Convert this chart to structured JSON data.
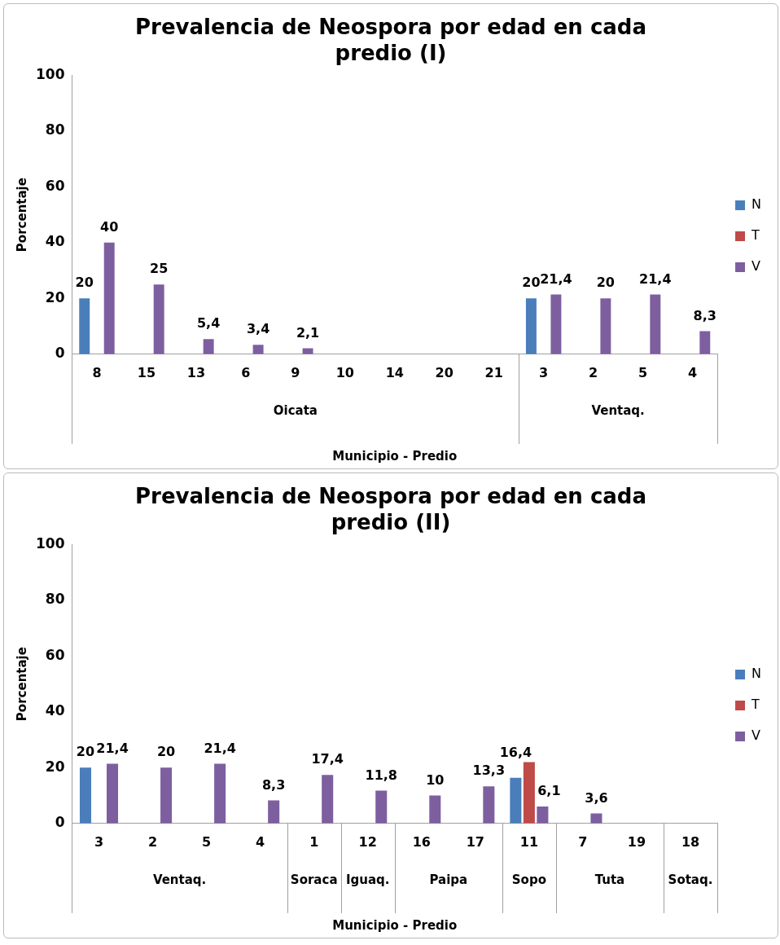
{
  "chart_data": [
    {
      "type": "bar",
      "title": "Prevalencia de Neospora por edad en cada predio (I)",
      "xlabel": "Municipio - Predio",
      "ylabel": "Porcentaje",
      "categories": [
        "8",
        "15",
        "13",
        "6",
        "9",
        "10",
        "14",
        "20",
        "21",
        "3",
        "2",
        "5",
        "4"
      ],
      "series": [
        {
          "name": "N",
          "color": "#4a7ebb",
          "values": [
            20,
            null,
            null,
            null,
            null,
            null,
            null,
            null,
            null,
            20,
            null,
            null,
            null
          ],
          "value_labels": [
            "20",
            null,
            null,
            null,
            null,
            null,
            null,
            null,
            null,
            "20",
            null,
            null,
            null
          ]
        },
        {
          "name": "T",
          "color": "#be4b48",
          "values": [
            null,
            null,
            null,
            null,
            null,
            null,
            null,
            null,
            null,
            null,
            null,
            null,
            null
          ]
        },
        {
          "name": "V",
          "color": "#7d5fa0",
          "values": [
            40,
            25,
            5.4,
            3.4,
            2.1,
            null,
            null,
            null,
            null,
            21.4,
            20,
            21.4,
            8.3
          ],
          "value_labels": [
            "40",
            "25",
            "5,4",
            "3,4",
            "2,1",
            null,
            null,
            null,
            null,
            "21,4",
            "20",
            "21,4",
            "8,3"
          ]
        }
      ],
      "ylim": [
        0,
        100
      ],
      "yticks": [
        0,
        20,
        40,
        60,
        80,
        100
      ],
      "grid": false,
      "legend": "right",
      "annotations": [
        "Oicata",
        "Ventaq."
      ]
    },
    {
      "type": "bar",
      "title": "Prevalencia de Neospora por edad en cada predio (II)",
      "xlabel": "Municipio - Predio",
      "ylabel": "Porcentaje",
      "categories": [
        "3",
        "2",
        "5",
        "4",
        "1",
        "12",
        "16",
        "17",
        "11",
        "7",
        "19",
        "18"
      ],
      "series": [
        {
          "name": "N",
          "color": "#4a7ebb",
          "values": [
            20,
            null,
            null,
            null,
            null,
            null,
            null,
            null,
            16.4,
            null,
            null,
            null
          ],
          "value_labels": [
            "20",
            null,
            null,
            null,
            null,
            null,
            null,
            null,
            "16,4",
            null,
            null,
            null
          ]
        },
        {
          "name": "T",
          "color": "#be4b48",
          "values": [
            null,
            null,
            null,
            null,
            null,
            null,
            null,
            null,
            22,
            null,
            null,
            null
          ]
        },
        {
          "name": "V",
          "color": "#7d5fa0",
          "values": [
            21.4,
            20,
            21.4,
            8.3,
            17.4,
            11.8,
            10,
            13.3,
            6.1,
            3.6,
            null,
            null
          ],
          "value_labels": [
            "21,4",
            "20",
            "21,4",
            "8,3",
            "17,4",
            "11,8",
            "10",
            "13,3",
            "6,1",
            "3,6",
            null,
            null
          ]
        }
      ],
      "ylim": [
        0,
        100
      ],
      "yticks": [
        0,
        20,
        40,
        60,
        80,
        100
      ],
      "grid": false,
      "legend": "right",
      "annotations": [
        "Ventaq.",
        "Soraca",
        "Iguaq.",
        "Paipa",
        "Sopo",
        "Tuta",
        "Sotaq."
      ]
    }
  ]
}
